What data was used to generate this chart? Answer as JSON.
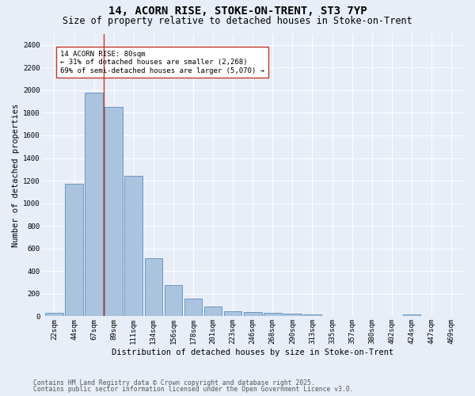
{
  "title_line1": "14, ACORN RISE, STOKE-ON-TRENT, ST3 7YP",
  "title_line2": "Size of property relative to detached houses in Stoke-on-Trent",
  "xlabel": "Distribution of detached houses by size in Stoke-on-Trent",
  "ylabel": "Number of detached properties",
  "categories": [
    "22sqm",
    "44sqm",
    "67sqm",
    "89sqm",
    "111sqm",
    "134sqm",
    "156sqm",
    "178sqm",
    "201sqm",
    "223sqm",
    "246sqm",
    "268sqm",
    "290sqm",
    "313sqm",
    "335sqm",
    "357sqm",
    "380sqm",
    "402sqm",
    "424sqm",
    "447sqm",
    "469sqm"
  ],
  "values": [
    28,
    1175,
    1980,
    1855,
    1240,
    515,
    275,
    155,
    90,
    48,
    40,
    30,
    22,
    15,
    5,
    2,
    2,
    2,
    20,
    2,
    2
  ],
  "bar_color": "#aac4e0",
  "bar_edge_color": "#5b8db8",
  "background_color": "#e8eef7",
  "grid_color": "#ffffff",
  "vline_x_index": 2.5,
  "vline_color": "#c0392b",
  "annotation_text": "14 ACORN RISE: 80sqm\n← 31% of detached houses are smaller (2,268)\n69% of semi-detached houses are larger (5,070) →",
  "annotation_box_color": "#ffffff",
  "annotation_box_edge": "#c0392b",
  "ylim": [
    0,
    2500
  ],
  "yticks": [
    0,
    200,
    400,
    600,
    800,
    1000,
    1200,
    1400,
    1600,
    1800,
    2000,
    2200,
    2400
  ],
  "footer_line1": "Contains HM Land Registry data © Crown copyright and database right 2025.",
  "footer_line2": "Contains public sector information licensed under the Open Government Licence v3.0.",
  "title_fontsize": 10,
  "subtitle_fontsize": 8.5,
  "axis_label_fontsize": 7.5,
  "tick_fontsize": 6.5,
  "annotation_fontsize": 6.5,
  "footer_fontsize": 5.8
}
